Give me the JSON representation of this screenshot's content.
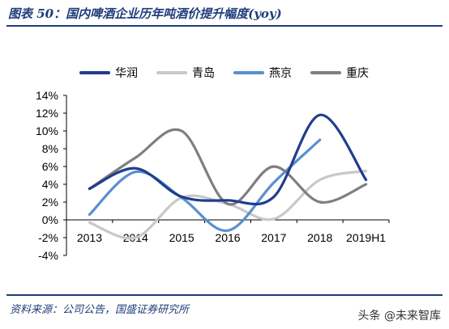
{
  "figure": {
    "title": "图表 50：国内啤酒企业历年吨酒价提升幅度(yoy)",
    "source": "资料来源：公司公告，国盛证券研究所",
    "watermark": "头条 @未来智库"
  },
  "chart_data": {
    "type": "line",
    "title": "",
    "xlabel": "",
    "ylabel": "",
    "x": [
      "2013",
      "2014",
      "2015",
      "2016",
      "2017",
      "2018",
      "2019H1"
    ],
    "ylim": [
      -4,
      14
    ],
    "yticks": [
      "14%",
      "12%",
      "10%",
      "8%",
      "6%",
      "4%",
      "2%",
      "0%",
      "-2%",
      "-4%"
    ],
    "ytick_values": [
      14,
      12,
      10,
      8,
      6,
      4,
      2,
      0,
      -2,
      -4
    ],
    "legend_position": "top",
    "grid": false,
    "smooth": true,
    "series": [
      {
        "name": "华润",
        "color": "#1f3d8f",
        "values": [
          3.5,
          5.8,
          2.6,
          2.2,
          2.6,
          11.8,
          4.5
        ]
      },
      {
        "name": "青岛",
        "color": "#c8c8c8",
        "values": [
          -0.3,
          -2.0,
          2.5,
          1.8,
          0.1,
          4.5,
          5.5
        ]
      },
      {
        "name": "燕京",
        "color": "#5b8fd0",
        "values": [
          0.6,
          5.4,
          2.5,
          -1.2,
          4.2,
          9.0,
          null
        ]
      },
      {
        "name": "重庆",
        "color": "#7f7f7f",
        "values": [
          3.5,
          7.0,
          10.0,
          1.8,
          6.0,
          2.0,
          4.0
        ]
      }
    ]
  }
}
